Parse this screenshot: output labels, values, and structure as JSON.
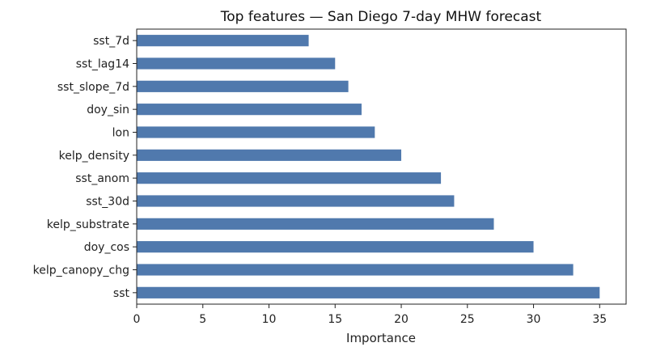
{
  "chart_data": {
    "type": "bar",
    "orientation": "horizontal",
    "title": "Top features — San Diego 7-day MHW forecast",
    "xlabel": "Importance",
    "ylabel": "",
    "xlim": [
      0,
      37
    ],
    "xticks": [
      0,
      5,
      10,
      15,
      20,
      25,
      30,
      35
    ],
    "grid": false,
    "bar_color": "#5079ad",
    "categories": [
      "sst_7d",
      "sst_lag14",
      "sst_slope_7d",
      "doy_sin",
      "lon",
      "kelp_density",
      "sst_anom",
      "sst_30d",
      "kelp_substrate",
      "doy_cos",
      "kelp_canopy_chg",
      "sst"
    ],
    "values": [
      13,
      15,
      16,
      17,
      18,
      20,
      23,
      24,
      27,
      30,
      33,
      35
    ]
  }
}
